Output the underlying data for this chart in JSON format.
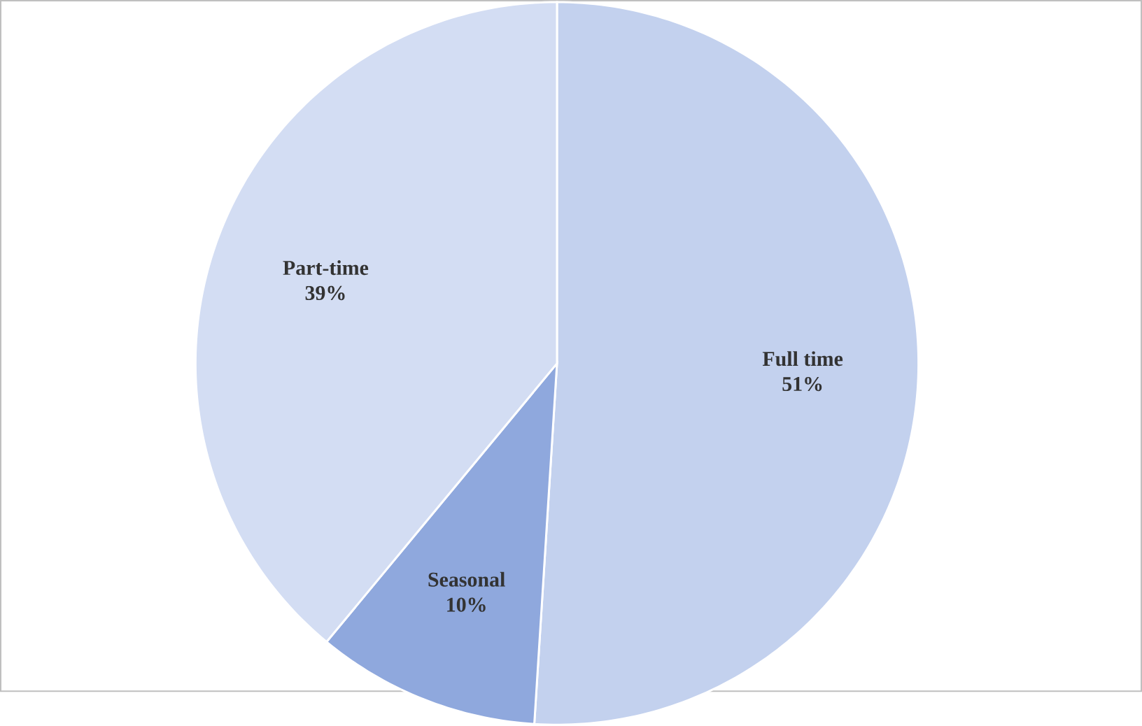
{
  "chart_data": {
    "type": "pie",
    "categories": [
      "Full time",
      "Seasonal",
      "Part-time"
    ],
    "values": [
      51,
      10,
      39
    ],
    "value_labels": [
      "51%",
      "10%",
      "39%"
    ],
    "colors": [
      "#c3d1ee",
      "#8fa8dd",
      "#d3ddf3"
    ]
  }
}
